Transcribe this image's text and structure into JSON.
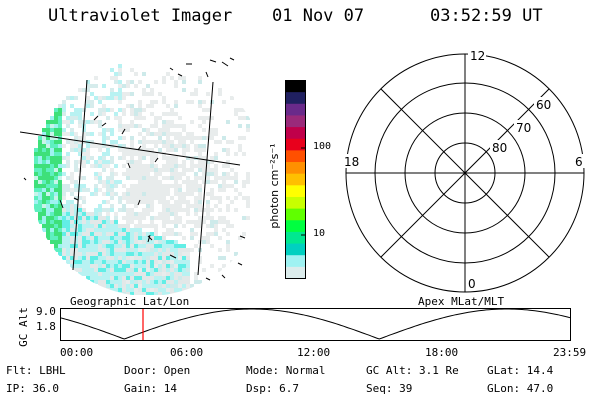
{
  "header": {
    "instrument": "Ultraviolet Imager",
    "date": "01 Nov 07",
    "time": "03:52:59 UT"
  },
  "image_panel": {
    "label": "Geographic Lat/Lon"
  },
  "polar_panel": {
    "label": "Apex MLat/MLT",
    "mlt_labels": {
      "top": "12",
      "left": "18",
      "right": "6",
      "bottom": "0"
    },
    "lat_labels": [
      "60",
      "70",
      "80"
    ]
  },
  "colorbar": {
    "unit_label": "photon cm⁻²s⁻¹",
    "ticks": [
      "100",
      "10"
    ],
    "colors": [
      "#000000",
      "#202060",
      "#6a2a8a",
      "#9a2a7a",
      "#c0004a",
      "#e8001c",
      "#ff5000",
      "#ff9000",
      "#ffc000",
      "#ffff00",
      "#c8ff00",
      "#60ff00",
      "#00ff40",
      "#00e890",
      "#00d0c0",
      "#9ff2f2",
      "#dcecec"
    ]
  },
  "altitude_plot": {
    "axis_label": "GC Alt",
    "y_ticks": [
      "9.0",
      "1.8"
    ],
    "x_ticks": [
      "00:00",
      "06:00",
      "12:00",
      "18:00",
      "23:59"
    ],
    "marker_color": "#ff0000",
    "marker_time": "03:52:59"
  },
  "status": {
    "filter": "Flt: LBHL",
    "door": "Door: Open",
    "mode": "Mode: Normal",
    "gc_alt": "GC Alt: 3.1 Re",
    "glat": "GLat:  14.4",
    "ip": "IP: 36.0",
    "gain": "Gain: 14",
    "dsp": "Dsp:    6.7",
    "seq": "Seq: 39",
    "glon": "GLon:  47.0"
  }
}
